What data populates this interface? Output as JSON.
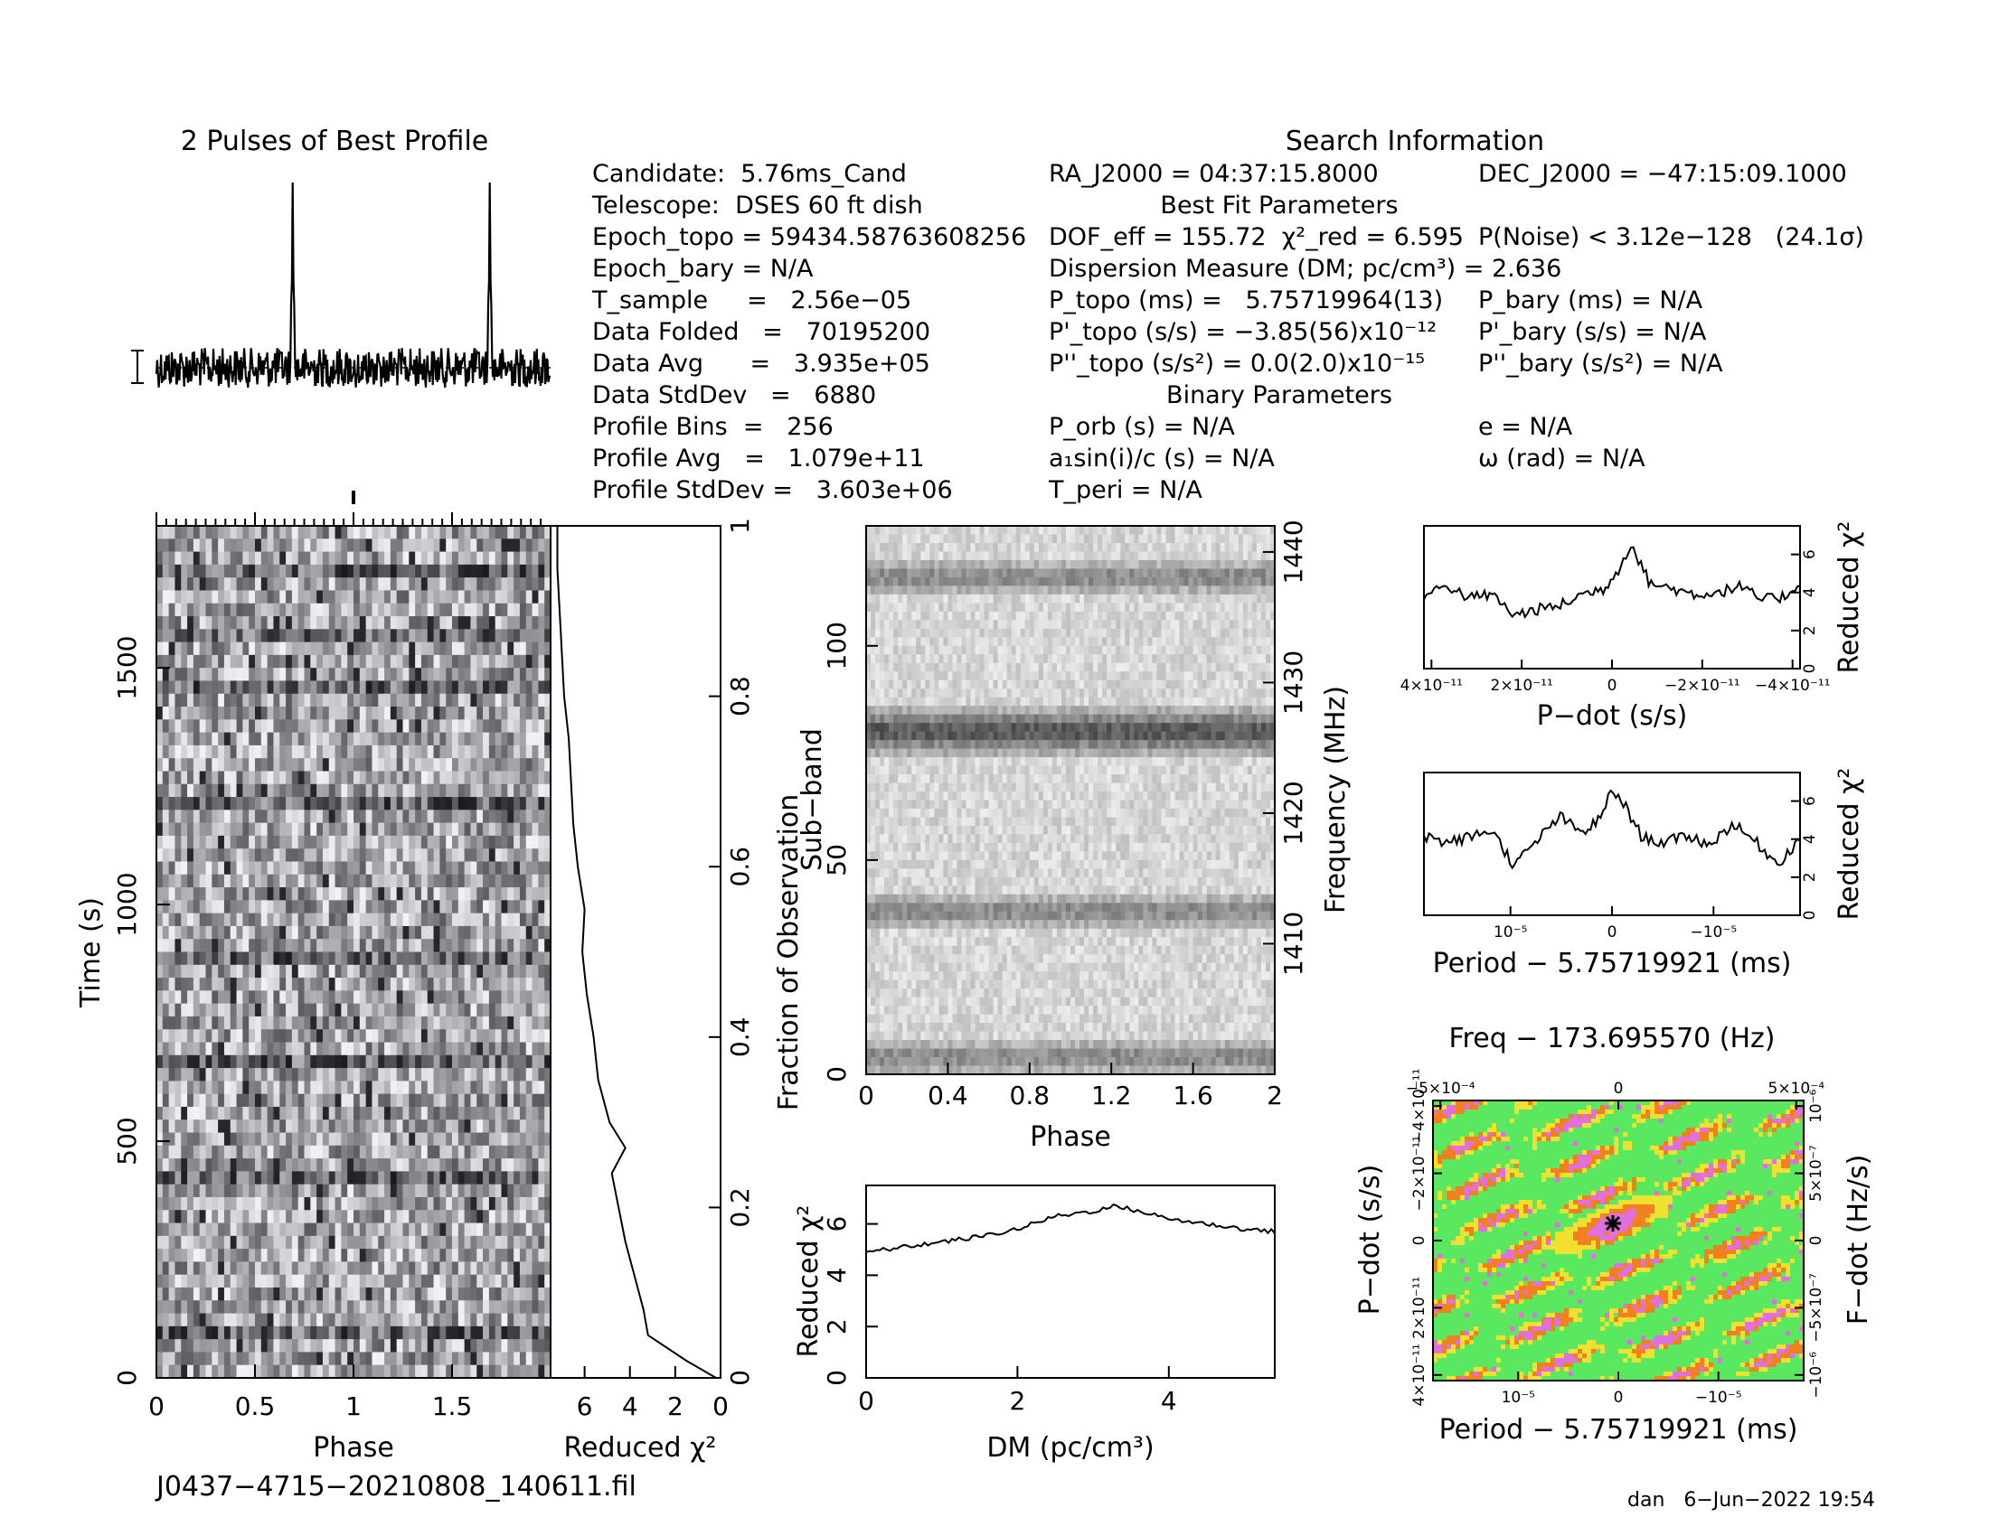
{
  "file_name": "J0437−4715−20210808_140611.fil",
  "footer": "dan   6−Jun−2022 19:54",
  "profile_title": "2 Pulses of Best Profile",
  "search_title": "Search Information",
  "info_left": [
    "Candidate:  5.76ms_Cand",
    "Telescope:  DSES 60 ft dish",
    "Epoch_topo = 59434.58763608256",
    "Epoch_bary = N/A",
    "T_sample     =   2.56e−05",
    "Data Folded   =   70195200",
    "Data Avg      =   3.935e+05",
    "Data StdDev   =   6880",
    "Profile Bins  =   256",
    "Profile Avg   =   1.079e+11",
    "Profile StdDev =   3.603e+06"
  ],
  "info_mid": [
    "RA_J2000 = 04:37:15.8000",
    "DOF_eff = 155.72  χ²_red = 6.595",
    "Dispersion Measure (DM; pc/cm³) = 2.636",
    "P_topo (ms) =   5.75719964(13)",
    "P'_topo (s/s) = −3.85(56)x10⁻¹²",
    "P''_topo (s/s²) = 0.0(2.0)x10⁻¹⁵",
    "P_orb (s) = N/A",
    "a₁sin(i)/c (s) = N/A",
    "T_peri = N/A"
  ],
  "info_right": [
    "DEC_J2000 = −47:15:09.1000",
    "P(Noise) < 3.12e−128   (24.1σ)",
    "P_bary (ms) = N/A",
    "P'_bary (s/s) = N/A",
    "P''_bary (s/s²) = N/A",
    "e = N/A",
    "ω (rad) = N/A"
  ],
  "best_fit_title": "Best Fit Parameters",
  "binary_title": "Binary Parameters",
  "chart_data": [
    {
      "id": "best_profile",
      "type": "line",
      "title": "2 Pulses of Best Profile",
      "xlim": [
        0,
        2
      ],
      "peaks_at_phase": [
        0.69,
        1.69
      ]
    },
    {
      "id": "time_phase",
      "type": "heatmap",
      "xlabel": "Phase",
      "ylabel": "Time (s)",
      "xticks": [
        "0",
        "0.5",
        "1",
        "1.5"
      ],
      "yticks": [
        "0",
        "500",
        "1000",
        "1500"
      ],
      "xlim": [
        0,
        2
      ],
      "ylim": [
        0,
        1800
      ],
      "right_axis": {
        "label": "Fraction of Observation",
        "ticks": [
          "0",
          "0.2",
          "0.4",
          "0.6",
          "0.8",
          "1"
        ]
      }
    },
    {
      "id": "chi2_vs_time",
      "type": "line",
      "xlabel": "Reduced χ²",
      "xticks": [
        "6",
        "4",
        "2",
        "0"
      ],
      "xlim": [
        7.5,
        0
      ],
      "y_fraction": [
        0.0,
        0.02,
        0.05,
        0.08,
        0.12,
        0.16,
        0.2,
        0.24,
        0.27,
        0.3,
        0.35,
        0.4,
        0.45,
        0.5,
        0.55,
        0.6,
        0.65,
        0.7,
        0.75,
        0.8,
        0.85,
        0.9,
        0.95,
        1.0
      ],
      "x_chi2": [
        0.2,
        1.5,
        3.2,
        3.4,
        3.8,
        4.2,
        4.5,
        4.8,
        4.2,
        4.9,
        5.4,
        5.6,
        5.9,
        6.1,
        6.0,
        6.3,
        6.5,
        6.6,
        6.7,
        6.9,
        7.0,
        7.1,
        7.2,
        7.2
      ]
    },
    {
      "id": "subband_phase",
      "type": "heatmap",
      "xlabel": "Phase",
      "ylabel": "Sub−band",
      "xticks": [
        "0",
        "0.4",
        "0.8",
        "1.2",
        "1.6",
        "2"
      ],
      "yticks": [
        "0",
        "50",
        "100"
      ],
      "xlim": [
        0,
        2
      ],
      "ylim": [
        0,
        128
      ],
      "right_axis": {
        "label": "Frequency (MHz)",
        "ticks": [
          "1410",
          "1420",
          "1430",
          "1440"
        ]
      },
      "dark_bands_subband": [
        4,
        38,
        80,
        116
      ]
    },
    {
      "id": "chi2_vs_dm",
      "type": "line",
      "xlabel": "DM (pc/cm³)",
      "ylabel": "Reduced χ²",
      "xticks": [
        "0",
        "2",
        "4"
      ],
      "yticks": [
        "0",
        "2",
        "4",
        "6"
      ],
      "xlim": [
        0,
        5.4
      ],
      "ylim": [
        0,
        7.5
      ],
      "x": [
        0,
        0.5,
        1.0,
        1.5,
        2.0,
        2.5,
        3.0,
        3.3,
        3.6,
        4.0,
        4.5,
        5.0,
        5.4
      ],
      "y": [
        4.9,
        5.1,
        5.3,
        5.5,
        5.8,
        6.3,
        6.5,
        6.7,
        6.5,
        6.2,
        6.0,
        5.8,
        5.7
      ]
    },
    {
      "id": "chi2_vs_pdot",
      "type": "line",
      "xlabel": "P−dot (s/s)",
      "ylabel": "Reduced χ²",
      "xticks": [
        "4×10⁻¹¹",
        "2×10⁻¹¹",
        "0",
        "−2×10⁻¹¹",
        "−4×10⁻¹¹"
      ],
      "yticks": [
        "0",
        "2",
        "4",
        "6"
      ],
      "ylim": [
        0,
        7.5
      ],
      "x_fraction": [
        0,
        0.06,
        0.12,
        0.18,
        0.24,
        0.3,
        0.36,
        0.42,
        0.48,
        0.52,
        0.55,
        0.6,
        0.66,
        0.72,
        0.78,
        0.84,
        0.9,
        0.96,
        1.0
      ],
      "y": [
        3.8,
        4.4,
        3.7,
        3.9,
        2.8,
        3.1,
        3.3,
        3.9,
        4.2,
        5.3,
        6.6,
        4.5,
        4.2,
        3.9,
        4.0,
        4.3,
        3.6,
        3.8,
        4.5
      ]
    },
    {
      "id": "chi2_vs_period",
      "type": "line",
      "xlabel": "Period − 5.75719921 (ms)",
      "ylabel": "Reduced χ²",
      "xticks": [
        "10⁻⁵",
        "0",
        "−10⁻⁵"
      ],
      "yticks": [
        "0",
        "2",
        "4",
        "6"
      ],
      "ylim": [
        0,
        7.5
      ],
      "x_fraction": [
        0,
        0.06,
        0.12,
        0.18,
        0.24,
        0.3,
        0.36,
        0.42,
        0.47,
        0.5,
        0.53,
        0.58,
        0.64,
        0.7,
        0.76,
        0.82,
        0.88,
        0.94,
        1.0
      ],
      "y": [
        4.2,
        3.8,
        4.1,
        4.5,
        2.6,
        3.9,
        5.2,
        4.3,
        5.1,
        6.6,
        5.9,
        4.1,
        3.8,
        4.2,
        3.7,
        4.8,
        3.9,
        2.7,
        4.0
      ]
    },
    {
      "id": "period_pdot_map",
      "type": "heatmap",
      "title": "Freq − 173.695570 (Hz)",
      "xlabel": "Period − 5.75719921 (ms)",
      "ylabel": "P−dot (s/s)",
      "xticks": [
        "10⁻⁵",
        "0",
        "−10⁻⁵"
      ],
      "yticks": [
        "4×10⁻¹¹",
        "2×10⁻¹¹",
        "0",
        "−2×10⁻¹¹",
        "−4×10⁻¹¹"
      ],
      "top_axis": {
        "ticks": [
          "−5×10⁻⁴",
          "0",
          "5×10⁻⁴"
        ]
      },
      "right_axis": {
        "label": "F−dot (Hz/s)",
        "ticks": [
          "−10⁻⁶",
          "−5×10⁻⁷",
          "0",
          "5×10⁻⁷",
          "10⁻⁶"
        ]
      },
      "colors": [
        "#1a1aa8",
        "#1e5ae0",
        "#22b0e8",
        "#2fd0b0",
        "#5ae860",
        "#f0e030",
        "#f08020",
        "#e070e0"
      ]
    }
  ]
}
